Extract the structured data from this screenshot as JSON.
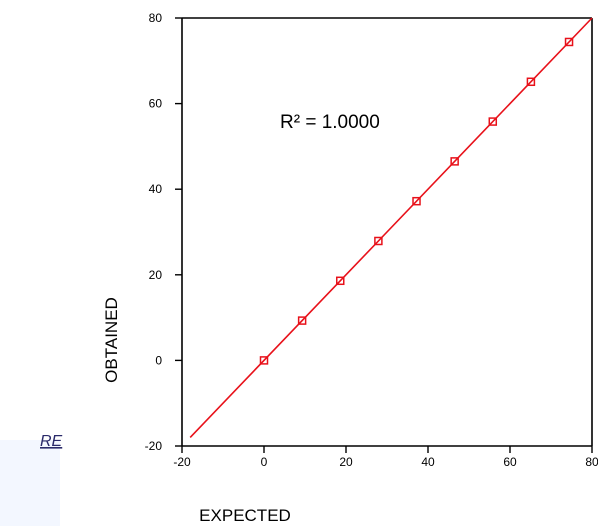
{
  "side_text": "RE",
  "chart_data": {
    "type": "scatter",
    "xlabel": "EXPECTED",
    "ylabel": "OBTAINED",
    "xlim": [
      -20,
      80
    ],
    "ylim": [
      -20,
      80
    ],
    "x_ticks": [
      -20,
      0,
      20,
      40,
      60,
      80
    ],
    "y_ticks": [
      -20,
      0,
      20,
      40,
      60,
      80
    ],
    "grid": false,
    "series": [
      {
        "x": [
          0,
          9.3,
          18.6,
          27.9,
          37.2,
          46.5,
          55.8,
          65.1,
          74.4
        ],
        "y": [
          0,
          9.3,
          18.6,
          27.9,
          37.2,
          46.5,
          55.8,
          65.1,
          74.4
        ],
        "marker": "square",
        "color": "#e8111a"
      }
    ],
    "trendline": {
      "slope": 1,
      "intercept": 0,
      "x_range": [
        -18,
        80
      ],
      "color": "#e8111a"
    },
    "annotation": "R² = 1.0000"
  }
}
